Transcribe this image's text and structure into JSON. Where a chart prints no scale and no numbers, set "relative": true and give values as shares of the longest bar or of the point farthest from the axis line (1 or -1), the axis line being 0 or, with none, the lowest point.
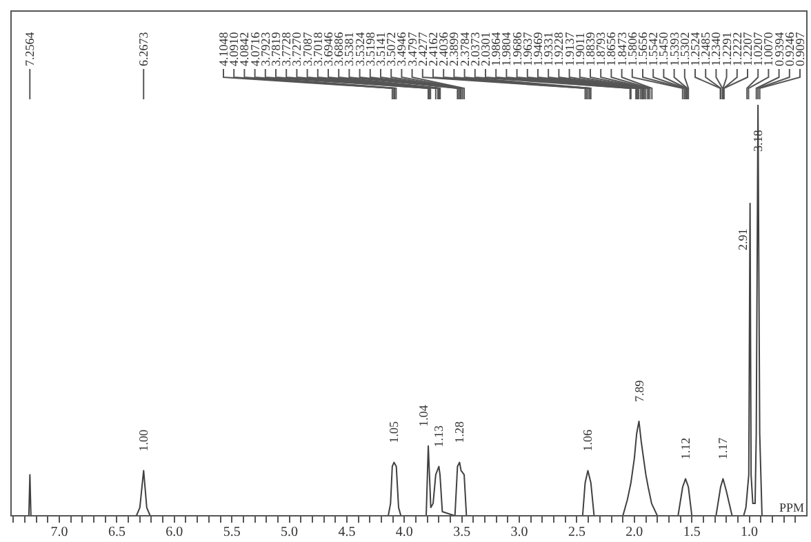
{
  "chart_data": {
    "type": "line",
    "relative": true,
    "xlabel": "PPM",
    "x": [
      7.42,
      7.28,
      7.265,
      7.256,
      7.247,
      6.33,
      6.3,
      6.267,
      6.24,
      6.21,
      4.14,
      4.12,
      4.105,
      4.09,
      4.07,
      4.05,
      4.03,
      3.81,
      3.792,
      3.77,
      3.75,
      3.727,
      3.7,
      3.69,
      3.67,
      3.56,
      3.538,
      3.52,
      3.507,
      3.48,
      3.46,
      2.45,
      2.428,
      2.404,
      2.378,
      2.35,
      2.1,
      2.06,
      2.03,
      2.0,
      1.98,
      1.96,
      1.94,
      1.92,
      1.9,
      1.88,
      1.85,
      1.8,
      1.62,
      1.58,
      1.555,
      1.53,
      1.5,
      1.29,
      1.25,
      1.229,
      1.2,
      1.15,
      1.05,
      1.03,
      1.005,
      0.994,
      0.985,
      0.97,
      0.96,
      0.95,
      0.94,
      0.925,
      0.91,
      0.89,
      0.5
    ],
    "series": [
      {
        "color": "#404040",
        "values": [
          0,
          0,
          0,
          0.1,
          0,
          0,
          0.02,
          0.11,
          0.02,
          0,
          0,
          0.03,
          0.12,
          0.13,
          0.12,
          0.02,
          0,
          0,
          0.17,
          0.02,
          0.03,
          0.1,
          0.12,
          0.1,
          0.01,
          0,
          0.12,
          0.13,
          0.11,
          0.1,
          0,
          0,
          0.08,
          0.11,
          0.08,
          0,
          0,
          0.04,
          0.08,
          0.14,
          0.2,
          0.23,
          0.18,
          0.14,
          0.1,
          0.07,
          0.03,
          0,
          0,
          0.07,
          0.09,
          0.07,
          0,
          0,
          0.07,
          0.09,
          0.06,
          0,
          0,
          0.02,
          0.1,
          0.76,
          0.1,
          0.03,
          0.03,
          0.03,
          0.2,
          1,
          0.2,
          0,
          0
        ]
      }
    ],
    "xlim": [
      7.42,
      0.5
    ],
    "xticks": [
      {
        "value": 7,
        "label": "7.0"
      },
      {
        "value": 6.5,
        "label": "6.5"
      },
      {
        "value": 6,
        "label": "6.0"
      },
      {
        "value": 5.5,
        "label": "5.5"
      },
      {
        "value": 5,
        "label": "5.0"
      },
      {
        "value": 4.5,
        "label": "4.5"
      },
      {
        "value": 4,
        "label": "4.0"
      },
      {
        "value": 3.5,
        "label": "3.5"
      },
      {
        "value": 3,
        "label": "3.0"
      },
      {
        "value": 2.5,
        "label": "2.5"
      },
      {
        "value": 2,
        "label": "2.0"
      },
      {
        "value": 1.5,
        "label": "1.5"
      },
      {
        "value": 1,
        "label": "1.0"
      },
      {
        "value": 7.4,
        "label": null
      },
      {
        "value": 7.3,
        "label": null
      },
      {
        "value": 7.2,
        "label": null
      },
      {
        "value": 7.1,
        "label": null
      },
      {
        "value": 6.9,
        "label": null
      },
      {
        "value": 6.8,
        "label": null
      },
      {
        "value": 6.7,
        "label": null
      },
      {
        "value": 6.6,
        "label": null
      },
      {
        "value": 6.4,
        "label": null
      },
      {
        "value": 6.3,
        "label": null
      },
      {
        "value": 6.2,
        "label": null
      },
      {
        "value": 6.1,
        "label": null
      },
      {
        "value": 5.9,
        "label": null
      },
      {
        "value": 5.8,
        "label": null
      },
      {
        "value": 5.7,
        "label": null
      },
      {
        "value": 5.6,
        "label": null
      },
      {
        "value": 5.4,
        "label": null
      },
      {
        "value": 5.3,
        "label": null
      },
      {
        "value": 5.2,
        "label": null
      },
      {
        "value": 5.1,
        "label": null
      },
      {
        "value": 4.9,
        "label": null
      },
      {
        "value": 4.8,
        "label": null
      },
      {
        "value": 4.7,
        "label": null
      },
      {
        "value": 4.6,
        "label": null
      },
      {
        "value": 4.4,
        "label": null
      },
      {
        "value": 4.3,
        "label": null
      },
      {
        "value": 4.2,
        "label": null
      },
      {
        "value": 4.1,
        "label": null
      },
      {
        "value": 3.9,
        "label": null
      },
      {
        "value": 3.8,
        "label": null
      },
      {
        "value": 3.7,
        "label": null
      },
      {
        "value": 3.6,
        "label": null
      },
      {
        "value": 3.4,
        "label": null
      },
      {
        "value": 3.3,
        "label": null
      },
      {
        "value": 3.2,
        "label": null
      },
      {
        "value": 3.1,
        "label": null
      },
      {
        "value": 2.9,
        "label": null
      },
      {
        "value": 2.8,
        "label": null
      },
      {
        "value": 2.7,
        "label": null
      },
      {
        "value": 2.6,
        "label": null
      },
      {
        "value": 2.4,
        "label": null
      },
      {
        "value": 2.3,
        "label": null
      },
      {
        "value": 2.2,
        "label": null
      },
      {
        "value": 2.1,
        "label": null
      },
      {
        "value": 1.9,
        "label": null
      },
      {
        "value": 1.8,
        "label": null
      },
      {
        "value": 1.7,
        "label": null
      },
      {
        "value": 1.6,
        "label": null
      },
      {
        "value": 1.4,
        "label": null
      },
      {
        "value": 1.3,
        "label": null
      },
      {
        "value": 1.2,
        "label": null
      },
      {
        "value": 1.1,
        "label": null
      },
      {
        "value": 0.9,
        "label": null
      },
      {
        "value": 0.8,
        "label": null
      },
      {
        "value": 0.7,
        "label": null
      },
      {
        "value": 0.6,
        "label": null
      }
    ],
    "grid": false,
    "legend": false,
    "annotations": [
      {
        "text": "7.2564",
        "x": 7.2564
      },
      {
        "text": "6.2673",
        "x": 6.2673
      },
      {
        "text": "4.1048",
        "x": 4.1048
      },
      {
        "text": "4.0910",
        "x": 4.091
      },
      {
        "text": "4.0842",
        "x": 4.0842
      },
      {
        "text": "4.0716",
        "x": 4.0716
      },
      {
        "text": "3.7923",
        "x": 3.7923
      },
      {
        "text": "3.7819",
        "x": 3.7819
      },
      {
        "text": "3.7728",
        "x": 3.7728
      },
      {
        "text": "3.7270",
        "x": 3.727
      },
      {
        "text": "3.7087",
        "x": 3.7087
      },
      {
        "text": "3.7018",
        "x": 3.7018
      },
      {
        "text": "3.6946",
        "x": 3.6946
      },
      {
        "text": "3.6886",
        "x": 3.6886
      },
      {
        "text": "3.5381",
        "x": 3.5381
      },
      {
        "text": "3.5324",
        "x": 3.5324
      },
      {
        "text": "3.5198",
        "x": 3.5198
      },
      {
        "text": "3.5141",
        "x": 3.5141
      },
      {
        "text": "3.5072",
        "x": 3.5072
      },
      {
        "text": "3.4946",
        "x": 3.4946
      },
      {
        "text": "3.4797",
        "x": 3.4797
      },
      {
        "text": "2.4277",
        "x": 2.4277
      },
      {
        "text": "2.4162",
        "x": 2.4162
      },
      {
        "text": "2.4036",
        "x": 2.4036
      },
      {
        "text": "2.3899",
        "x": 2.3899
      },
      {
        "text": "2.3784",
        "x": 2.3784
      },
      {
        "text": "2.0373",
        "x": 2.0373
      },
      {
        "text": "2.0301",
        "x": 2.0301
      },
      {
        "text": "1.9864",
        "x": 1.9864
      },
      {
        "text": "1.9804",
        "x": 1.9804
      },
      {
        "text": "1.9686",
        "x": 1.9686
      },
      {
        "text": "1.9637",
        "x": 1.9637
      },
      {
        "text": "1.9469",
        "x": 1.9469
      },
      {
        "text": "1.9331",
        "x": 1.9331
      },
      {
        "text": "1.9228",
        "x": 1.9228
      },
      {
        "text": "1.9137",
        "x": 1.9137
      },
      {
        "text": "1.9011",
        "x": 1.9011
      },
      {
        "text": "1.8839",
        "x": 1.8839
      },
      {
        "text": "1.8793",
        "x": 1.8793
      },
      {
        "text": "1.8656",
        "x": 1.8656
      },
      {
        "text": "1.8473",
        "x": 1.8473
      },
      {
        "text": "1.5806",
        "x": 1.5806
      },
      {
        "text": "1.5656",
        "x": 1.5656
      },
      {
        "text": "1.5542",
        "x": 1.5542
      },
      {
        "text": "1.5450",
        "x": 1.545
      },
      {
        "text": "1.5393",
        "x": 1.5393
      },
      {
        "text": "1.5302",
        "x": 1.5302
      },
      {
        "text": "1.2524",
        "x": 1.2524
      },
      {
        "text": "1.2485",
        "x": 1.2485
      },
      {
        "text": "1.2340",
        "x": 1.234
      },
      {
        "text": "1.2291",
        "x": 1.2291
      },
      {
        "text": "1.2222",
        "x": 1.2222
      },
      {
        "text": "1.2207",
        "x": 1.2207
      },
      {
        "text": "1.0207",
        "x": 1.0207
      },
      {
        "text": "1.0070",
        "x": 1.007
      },
      {
        "text": "0.9394",
        "x": 0.9394
      },
      {
        "text": "0.9246",
        "x": 0.9246
      },
      {
        "text": "0.9097",
        "x": 0.9097
      },
      {
        "text": "1.00",
        "x": 6.267,
        "y": 0.11
      },
      {
        "text": "1.05",
        "x": 4.09,
        "y": 0.13
      },
      {
        "text": "1.04",
        "x": 3.792,
        "y": 0.17
      },
      {
        "text": "1.13",
        "x": 3.7,
        "y": 0.12
      },
      {
        "text": "1.28",
        "x": 3.52,
        "y": 0.13
      },
      {
        "text": "1.06",
        "x": 2.404,
        "y": 0.11
      },
      {
        "text": "7.89",
        "x": 1.96,
        "y": 0.23
      },
      {
        "text": "1.12",
        "x": 1.555,
        "y": 0.09
      },
      {
        "text": "1.17",
        "x": 1.229,
        "y": 0.09
      },
      {
        "text": "2.91",
        "x": 0.994,
        "y": 0.76
      },
      {
        "text": "3.18",
        "x": 0.925,
        "y": 1
      }
    ]
  }
}
